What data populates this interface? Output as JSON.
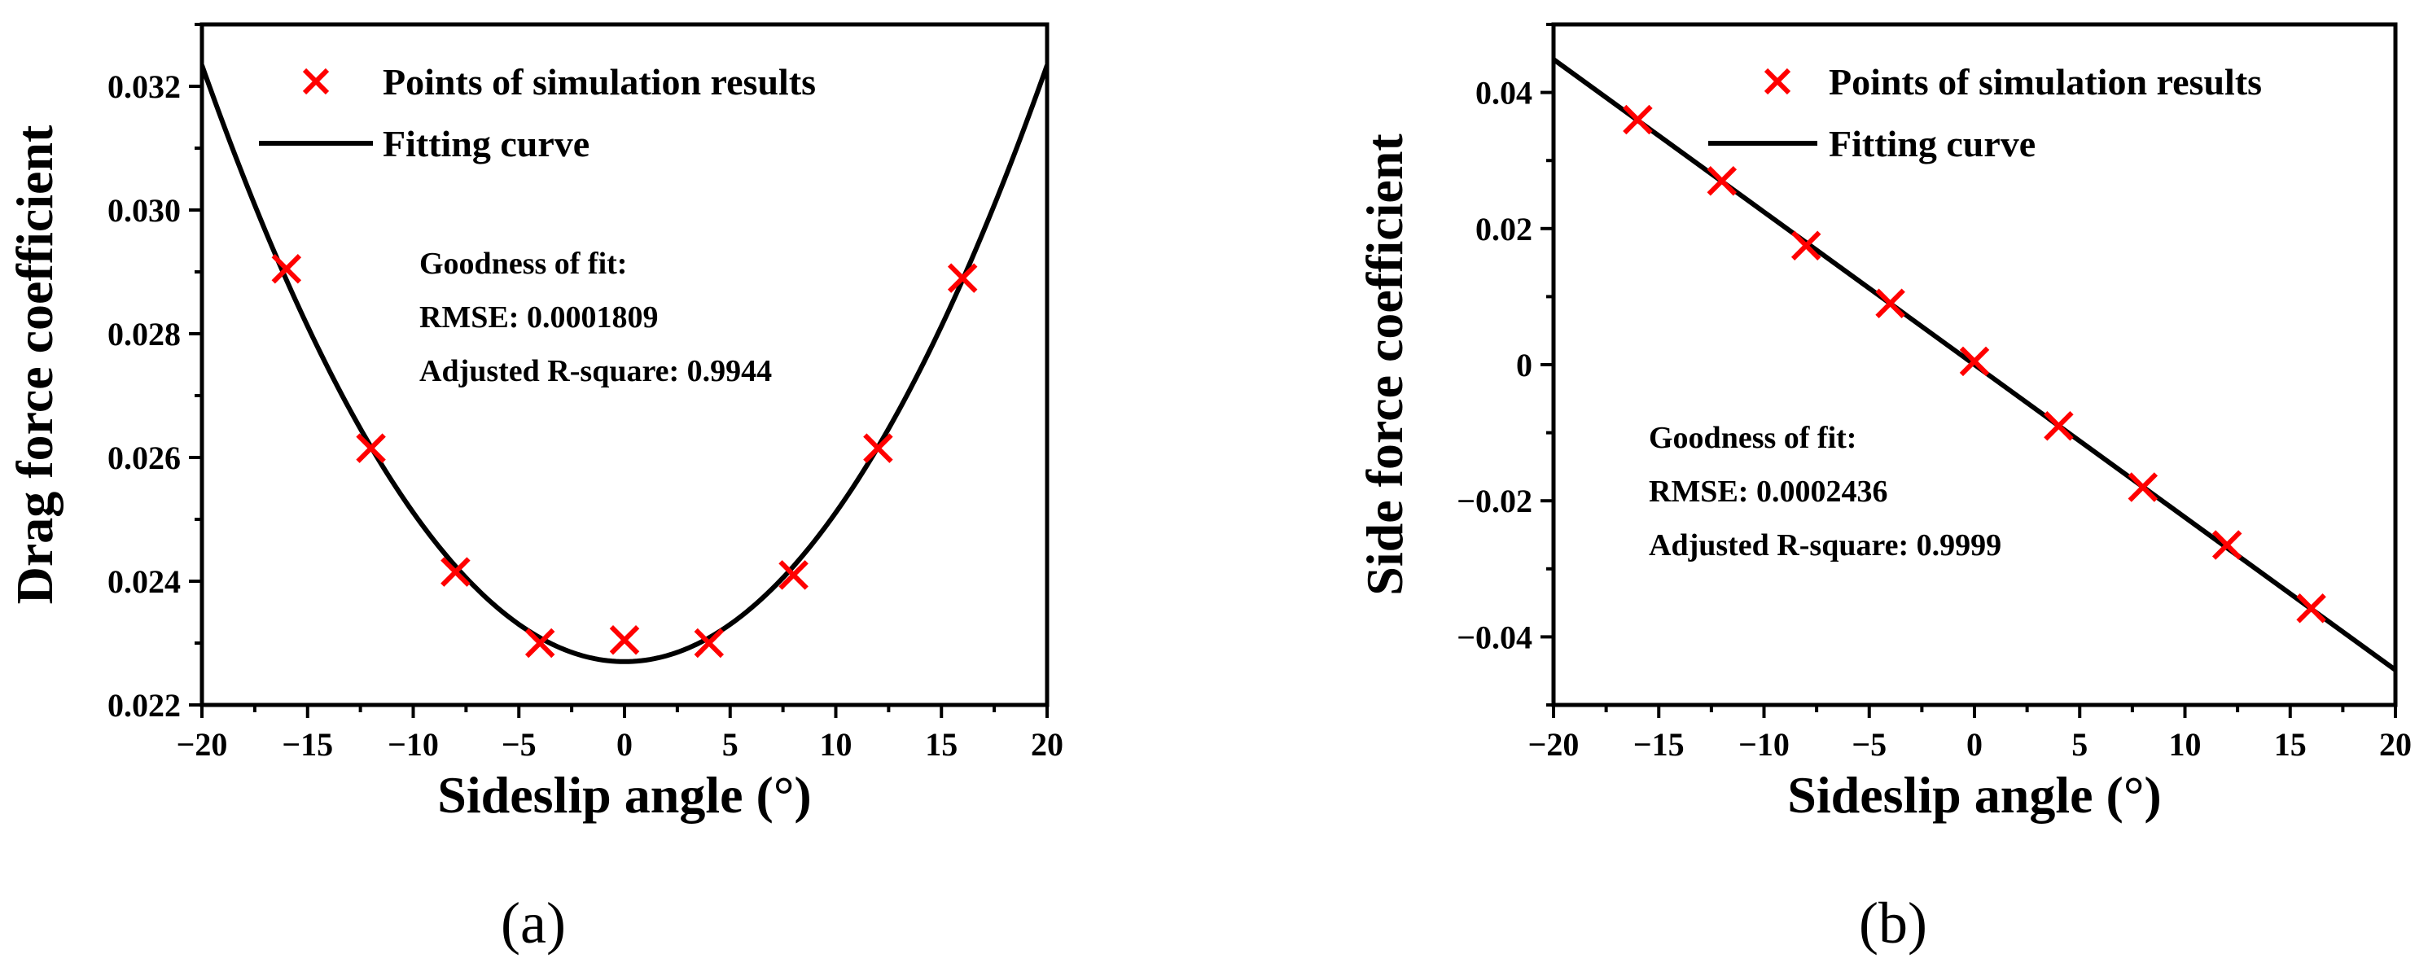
{
  "chart_data": [
    {
      "type": "scatter",
      "panel_label": "(a)",
      "xlabel": "Sideslip angle (°)",
      "ylabel": "Drag force coefficient",
      "xlim": [
        -20,
        20
      ],
      "ylim": [
        0.022,
        0.033
      ],
      "xticks": [
        -20,
        -15,
        -10,
        -5,
        0,
        5,
        10,
        15,
        20
      ],
      "xtick_labels": [
        "−20",
        "−15",
        "−10",
        "−5",
        "0",
        "5",
        "10",
        "15",
        "20"
      ],
      "yticks": [
        0.022,
        0.024,
        0.026,
        0.028,
        0.03,
        0.032
      ],
      "ytick_labels": [
        "0.022",
        "0.024",
        "0.026",
        "0.028",
        "0.030",
        "0.032"
      ],
      "grid": false,
      "legend_position": "top",
      "series": [
        {
          "name": "Points of simulation results",
          "kind": "scatter",
          "marker": "x",
          "color": "#ff0000",
          "x": [
            -16,
            -12,
            -8,
            -4,
            0,
            4,
            8,
            12,
            16
          ],
          "y": [
            0.02905,
            0.02615,
            0.02415,
            0.023,
            0.02305,
            0.023,
            0.0241,
            0.02615,
            0.0289
          ]
        },
        {
          "name": "Fitting curve",
          "kind": "line",
          "color": "#000000",
          "function": "quadratic",
          "coefficients": {
            "a": 2.41e-05,
            "b": 0.0,
            "c": 0.0227
          }
        }
      ],
      "annotation": {
        "title": "Goodness of fit:",
        "rmse": "RMSE: 0.0001809",
        "r2": "Adjusted R-square: 0.9944"
      }
    },
    {
      "type": "scatter",
      "panel_label": "(b)",
      "xlabel": "Sideslip angle (°)",
      "ylabel": "Side force coefficient",
      "xlim": [
        -20,
        20
      ],
      "ylim": [
        -0.05,
        0.05
      ],
      "xticks": [
        -20,
        -15,
        -10,
        -5,
        0,
        5,
        10,
        15,
        20
      ],
      "xtick_labels": [
        "−20",
        "−15",
        "−10",
        "−5",
        "0",
        "5",
        "10",
        "15",
        "20"
      ],
      "yticks": [
        -0.04,
        -0.02,
        0,
        0.02,
        0.04
      ],
      "ytick_labels": [
        "−0.04",
        "−0.02",
        "0",
        "0.02",
        "0.04"
      ],
      "grid": false,
      "legend_position": "top-right",
      "series": [
        {
          "name": "Points of simulation results",
          "kind": "scatter",
          "marker": "x",
          "color": "#ff0000",
          "x": [
            -16,
            -12,
            -8,
            -4,
            0,
            4,
            8,
            12,
            16
          ],
          "y": [
            0.036,
            0.027,
            0.0175,
            0.009,
            0.0005,
            -0.009,
            -0.018,
            -0.0265,
            -0.0358
          ]
        },
        {
          "name": "Fitting curve",
          "kind": "line",
          "color": "#000000",
          "function": "linear",
          "coefficients": {
            "slope": -0.002243,
            "intercept": 0.0
          }
        }
      ],
      "annotation": {
        "title": "Goodness of fit:",
        "rmse": "RMSE: 0.0002436",
        "r2": "Adjusted R-square: 0.9999"
      }
    }
  ]
}
